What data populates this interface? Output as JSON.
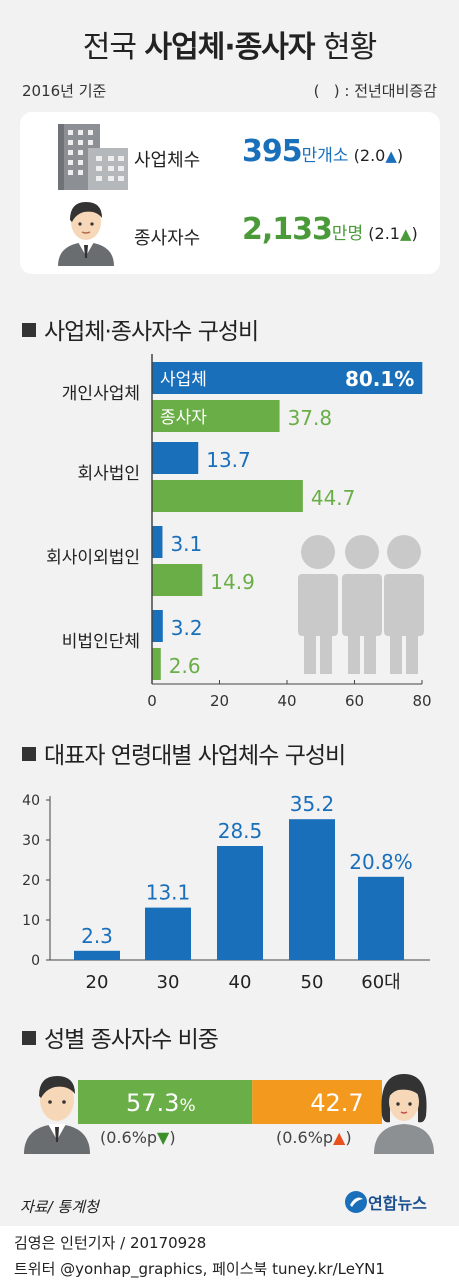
{
  "title": {
    "prefix": "전국 ",
    "bold": "사업체·종사자",
    "suffix": " 현황"
  },
  "basis": "2016년 기준",
  "paren_note": "(   ) : 전년대비증감",
  "summary": {
    "business": {
      "label": "사업체수",
      "value": "395",
      "unit": "만개소",
      "change": "(2.0",
      "close": ")"
    },
    "workers": {
      "label": "종사자수",
      "value": "2,133",
      "unit": "만명",
      "change": "(2.1",
      "close": ")"
    }
  },
  "colors": {
    "blue": "#1a6fba",
    "green": "#6aae47",
    "orange": "#f39a1e",
    "red": "#e8501e"
  },
  "chart_data": [
    {
      "type": "bar",
      "orientation": "horizontal",
      "title": "사업체·종사자수 구성비",
      "categories": [
        "개인사업체",
        "회사법인",
        "회사이외법인",
        "비법인단체"
      ],
      "series": [
        {
          "name": "사업체",
          "values": [
            80.1,
            13.7,
            3.1,
            3.2
          ],
          "labels": [
            "80.1%",
            "13.7",
            "3.1",
            "3.2"
          ]
        },
        {
          "name": "종사자",
          "values": [
            37.8,
            44.7,
            14.9,
            2.6
          ],
          "labels": [
            "37.8",
            "44.7",
            "14.9",
            "2.6"
          ]
        }
      ],
      "xlim": [
        0,
        80
      ],
      "xticks": [
        "0",
        "20",
        "40",
        "60",
        "80"
      ]
    },
    {
      "type": "bar",
      "title": "대표자 연령대별 사업체수 구성비",
      "categories": [
        "20",
        "30",
        "40",
        "50",
        "60대"
      ],
      "values": [
        2.3,
        13.1,
        28.5,
        35.2,
        20.8
      ],
      "labels": [
        "2.3",
        "13.1",
        "28.5",
        "35.2",
        "20.8%"
      ],
      "ylim": [
        0,
        40
      ],
      "yticks": [
        "0",
        "10",
        "20",
        "30",
        "40"
      ]
    },
    {
      "type": "bar",
      "orientation": "stacked-horizontal",
      "title": "성별 종사자수 비중",
      "series": [
        {
          "name": "male",
          "value": 57.3,
          "label": "57.3",
          "unit": "%",
          "change": "(0.6%p",
          "close": ")"
        },
        {
          "name": "female",
          "value": 42.7,
          "label": "42.7",
          "change": "(0.6%p",
          "close": ")"
        }
      ]
    }
  ],
  "source": "자료/ 통계청",
  "logo": "연합뉴스",
  "credit": "김영은 인턴기자 / 20170928",
  "social": "트위터 @yonhap_graphics, 페이스북 tuney.kr/LeYN1"
}
